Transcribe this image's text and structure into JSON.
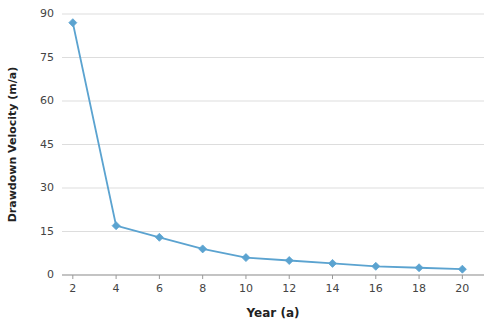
{
  "chart_data": {
    "type": "line",
    "x": [
      2,
      4,
      6,
      8,
      10,
      12,
      14,
      16,
      18,
      20
    ],
    "values": [
      87,
      17,
      13,
      9,
      6,
      5,
      4,
      3,
      2.5,
      2
    ],
    "xlabel": "Year (a)",
    "ylabel": "Drawdown Velocity (m/a)",
    "xlim": [
      1.5,
      21
    ],
    "ylim": [
      0,
      90
    ],
    "xticks": [
      2,
      4,
      6,
      8,
      10,
      12,
      14,
      16,
      18,
      20
    ],
    "yticks": [
      0,
      15,
      30,
      45,
      60,
      75,
      90
    ],
    "grid": true,
    "color": "#5ba3d0",
    "marker": "diamond"
  }
}
